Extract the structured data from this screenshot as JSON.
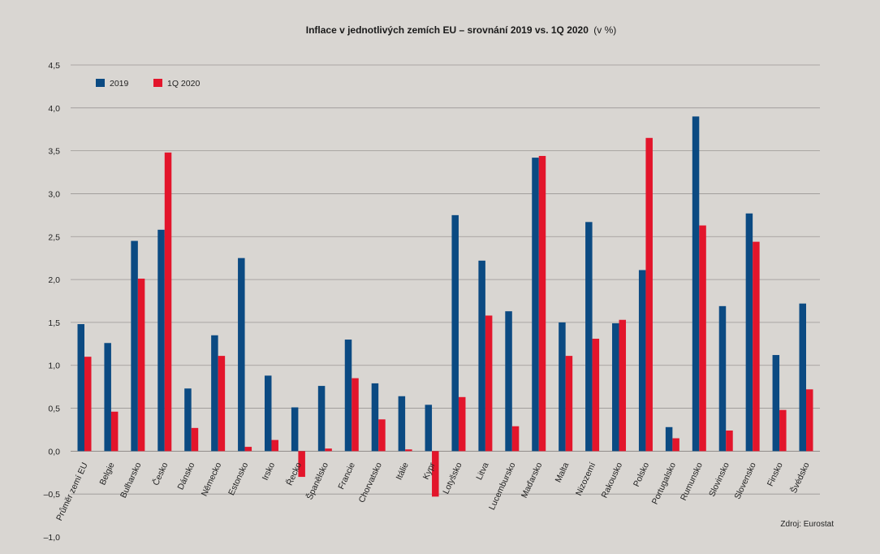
{
  "chart_data": {
    "type": "bar",
    "title": "Inflace v jednotlivých zemích EU – srovnání 2019 vs. 1Q 2020",
    "title_unit": "(v %)",
    "source": "Zdroj: Eurostat",
    "ylim": [
      -1.0,
      4.5
    ],
    "yticks": [
      "4,5",
      "4,0",
      "3,5",
      "3,0",
      "2,5",
      "2,0",
      "1,5",
      "1,0",
      "0,5",
      "0,0",
      "–0,5",
      "–1,0"
    ],
    "ytick_values": [
      4.5,
      4.0,
      3.5,
      3.0,
      2.5,
      2.0,
      1.5,
      1.0,
      0.5,
      0.0,
      -0.5,
      -1.0
    ],
    "grid": true,
    "legend_position": "top-left",
    "categories": [
      "Průměr zemí EU",
      "Belgie",
      "Bulharsko",
      "Česko",
      "Dánsko",
      "Německo",
      "Estonsko",
      "Irsko",
      "Řecko",
      "Španělsko",
      "Francie",
      "Chorvatsko",
      "Itálie",
      "Kypr",
      "Lotyšsko",
      "Litva",
      "Lucembursko",
      "Maďarsko",
      "Malta",
      "Nizozemí",
      "Rakousko",
      "Polsko",
      "Portugalsko",
      "Rumunsko",
      "Slovinsko",
      "Slovensko",
      "Finsko",
      "Švédsko"
    ],
    "series": [
      {
        "name": "2019",
        "color": "#0b4a82",
        "values": [
          1.48,
          1.26,
          2.45,
          2.58,
          0.73,
          1.35,
          2.25,
          0.88,
          0.51,
          0.76,
          1.3,
          0.79,
          0.64,
          0.54,
          2.75,
          2.22,
          1.63,
          3.42,
          1.5,
          2.67,
          1.49,
          2.11,
          0.28,
          3.9,
          1.69,
          2.77,
          1.12,
          1.72
        ]
      },
      {
        "name": "1Q 2020",
        "color": "#e3152b",
        "values": [
          1.1,
          0.46,
          2.01,
          3.48,
          0.27,
          1.11,
          0.05,
          0.13,
          -0.3,
          0.03,
          0.85,
          0.37,
          0.02,
          -0.53,
          0.63,
          1.58,
          0.29,
          3.44,
          1.11,
          1.31,
          1.53,
          3.65,
          0.15,
          2.63,
          0.24,
          2.44,
          0.48,
          0.72
        ]
      }
    ]
  }
}
